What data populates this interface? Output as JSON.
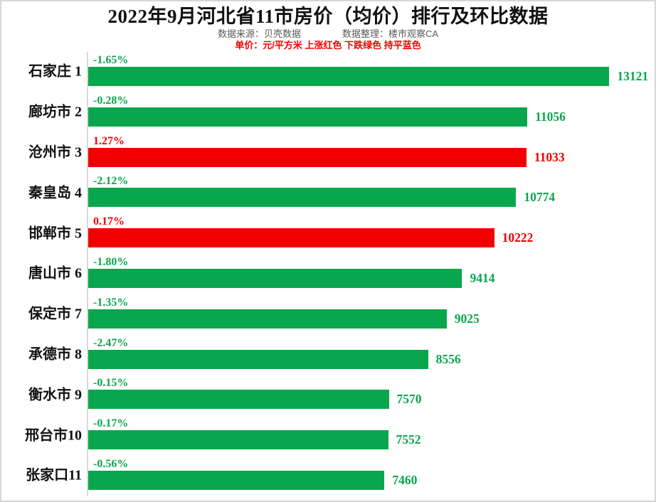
{
  "chart_data": {
    "type": "bar",
    "orientation": "horizontal",
    "title": "2022年9月河北省11市房价（均价）排行及环比数据",
    "source_note": "数据来源：贝壳数据",
    "curator_note": "数据整理：楼市观察CA",
    "legend_note": "单价：元/平方米 上涨红色 下跌绿色 持平蓝色",
    "value_axis_max": 14260,
    "grid": false,
    "legend_position": "top",
    "colors": {
      "up": "#F20000",
      "down": "#0AA64E",
      "flat": "#0000FF",
      "title": "#111111",
      "subtitle": "#595959",
      "axis_line": "#d9d9d9"
    },
    "categories": [
      "石家庄 1",
      "廊坊市 2",
      "沧州市 3",
      "秦皇岛 4",
      "邯郸市 5",
      "唐山市 6",
      "保定市 7",
      "承德市 8",
      "衡水市 9",
      "邢台市10",
      "张家口11"
    ],
    "values": [
      13121,
      11056,
      11033,
      10774,
      10222,
      9414,
      9025,
      8556,
      7570,
      7552,
      7460
    ],
    "rows": [
      {
        "city": "石家庄",
        "rank": 1,
        "label": "石家庄 1",
        "price": 13121,
        "change_pct": "-1.65%",
        "direction": "down"
      },
      {
        "city": "廊坊市",
        "rank": 2,
        "label": "廊坊市 2",
        "price": 11056,
        "change_pct": "-0.28%",
        "direction": "down"
      },
      {
        "city": "沧州市",
        "rank": 3,
        "label": "沧州市 3",
        "price": 11033,
        "change_pct": "1.27%",
        "direction": "up"
      },
      {
        "city": "秦皇岛",
        "rank": 4,
        "label": "秦皇岛 4",
        "price": 10774,
        "change_pct": "-2.12%",
        "direction": "down"
      },
      {
        "city": "邯郸市",
        "rank": 5,
        "label": "邯郸市 5",
        "price": 10222,
        "change_pct": "0.17%",
        "direction": "up"
      },
      {
        "city": "唐山市",
        "rank": 6,
        "label": "唐山市 6",
        "price": 9414,
        "change_pct": "-1.80%",
        "direction": "down"
      },
      {
        "city": "保定市",
        "rank": 7,
        "label": "保定市 7",
        "price": 9025,
        "change_pct": "-1.35%",
        "direction": "down"
      },
      {
        "city": "承德市",
        "rank": 8,
        "label": "承德市 8",
        "price": 8556,
        "change_pct": "-2.47%",
        "direction": "down"
      },
      {
        "city": "衡水市",
        "rank": 9,
        "label": "衡水市 9",
        "price": 7570,
        "change_pct": "-0.15%",
        "direction": "down"
      },
      {
        "city": "邢台市",
        "rank": 10,
        "label": "邢台市10",
        "price": 7552,
        "change_pct": "-0.17%",
        "direction": "down"
      },
      {
        "city": "张家口",
        "rank": 11,
        "label": "张家口11",
        "price": 7460,
        "change_pct": "-0.56%",
        "direction": "down"
      }
    ]
  }
}
